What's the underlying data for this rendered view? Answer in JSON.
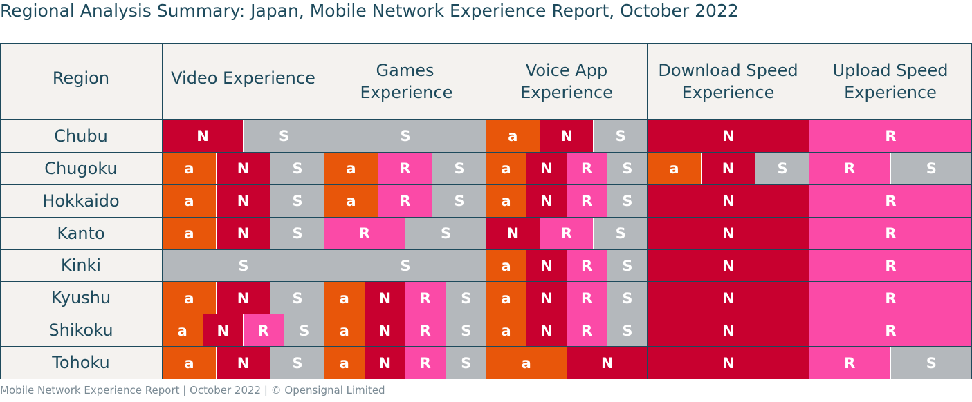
{
  "title": "Regional Analysis Summary: Japan, Mobile Network Experience Report, October 2022",
  "footer": "Mobile Network Experience Report | October 2022 | © Opensignal Limited",
  "colors": {
    "a": "#e8560a",
    "N": "#c8002f",
    "R": "#fb4aa7",
    "S": "#b4b8bc",
    "header_bg": "#f4f2ef",
    "text_dark": "#1d4a5c"
  },
  "chart_data": {
    "type": "table",
    "columns": [
      "Region",
      "Video Experience",
      "Games Experience",
      "Voice App Experience",
      "Download Speed Experience",
      "Upload Speed Experience"
    ],
    "rows": [
      {
        "region": "Chubu",
        "cells": [
          [
            "N",
            "S"
          ],
          [
            "S"
          ],
          [
            "a",
            "N",
            "S"
          ],
          [
            "N"
          ],
          [
            "R"
          ]
        ]
      },
      {
        "region": "Chugoku",
        "cells": [
          [
            "a",
            "N",
            "S"
          ],
          [
            "a",
            "R",
            "S"
          ],
          [
            "a",
            "N",
            "R",
            "S"
          ],
          [
            "a",
            "N",
            "S"
          ],
          [
            "R",
            "S"
          ]
        ]
      },
      {
        "region": "Hokkaido",
        "cells": [
          [
            "a",
            "N",
            "S"
          ],
          [
            "a",
            "R",
            "S"
          ],
          [
            "a",
            "N",
            "R",
            "S"
          ],
          [
            "N"
          ],
          [
            "R"
          ]
        ]
      },
      {
        "region": "Kanto",
        "cells": [
          [
            "a",
            "N",
            "S"
          ],
          [
            "R",
            "S"
          ],
          [
            "N",
            "R",
            "S"
          ],
          [
            "N"
          ],
          [
            "R"
          ]
        ]
      },
      {
        "region": "Kinki",
        "cells": [
          [
            "S"
          ],
          [
            "S"
          ],
          [
            "a",
            "N",
            "R",
            "S"
          ],
          [
            "N"
          ],
          [
            "R"
          ]
        ]
      },
      {
        "region": "Kyushu",
        "cells": [
          [
            "a",
            "N",
            "S"
          ],
          [
            "a",
            "N",
            "R",
            "S"
          ],
          [
            "a",
            "N",
            "R",
            "S"
          ],
          [
            "N"
          ],
          [
            "R"
          ]
        ]
      },
      {
        "region": "Shikoku",
        "cells": [
          [
            "a",
            "N",
            "R",
            "S"
          ],
          [
            "a",
            "N",
            "R",
            "S"
          ],
          [
            "a",
            "N",
            "R",
            "S"
          ],
          [
            "N"
          ],
          [
            "R"
          ]
        ]
      },
      {
        "region": "Tohoku",
        "cells": [
          [
            "a",
            "N",
            "S"
          ],
          [
            "a",
            "N",
            "R",
            "S"
          ],
          [
            "a",
            "N"
          ],
          [
            "N"
          ],
          [
            "R",
            "S"
          ]
        ]
      }
    ]
  }
}
